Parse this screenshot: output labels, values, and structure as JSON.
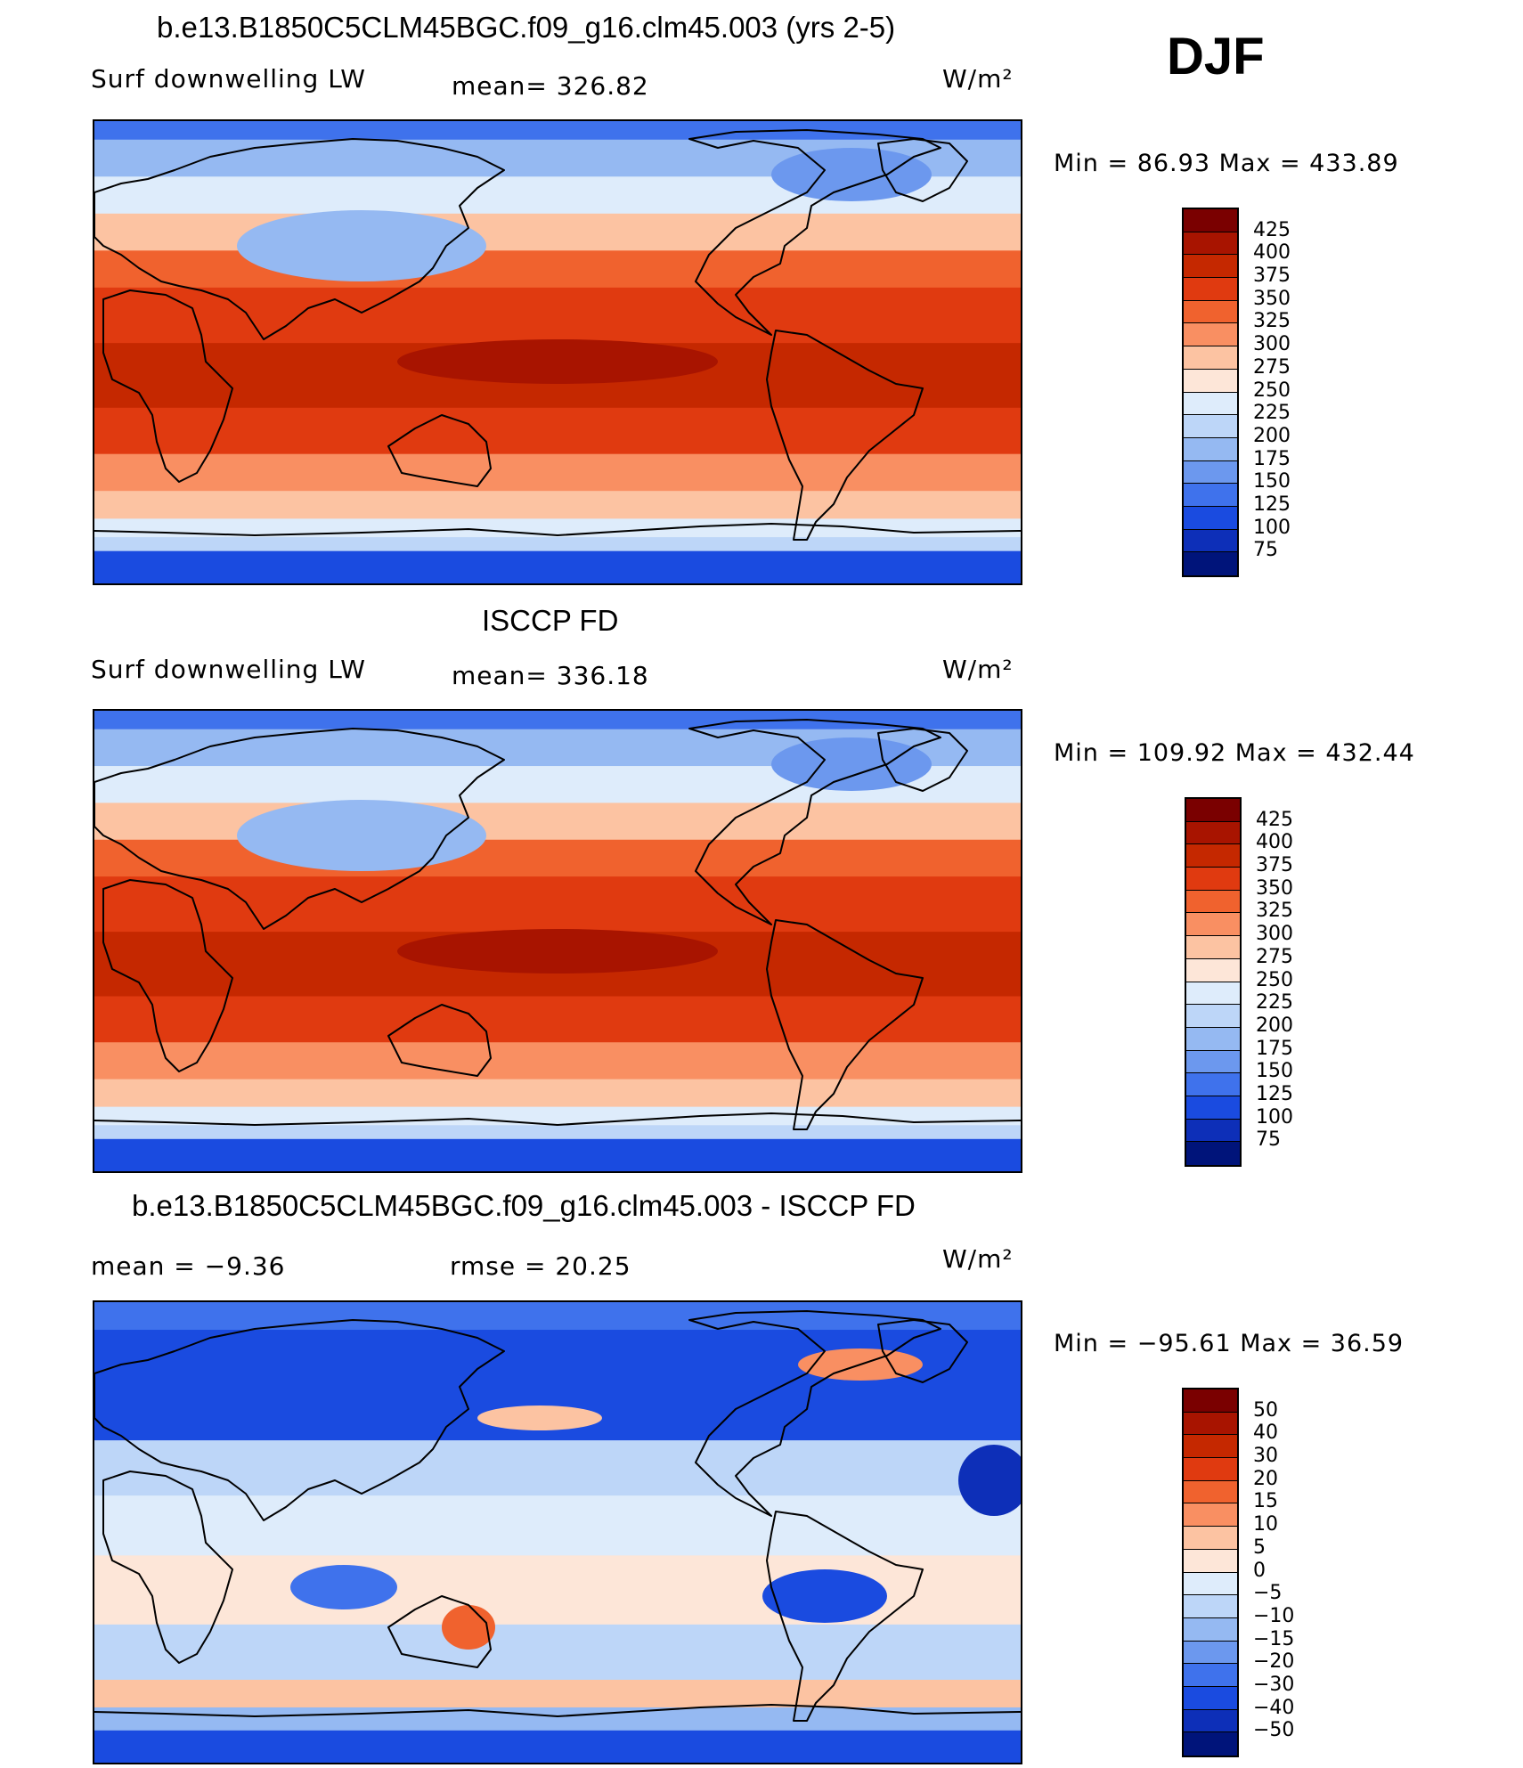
{
  "season": "DJF",
  "panels": [
    {
      "title": "b.e13.B1850C5CLM45BGC.f09_g16.clm45.003 (yrs 2-5)",
      "left_label": "Surf downwelling LW",
      "center_label": "mean= 326.82",
      "units": "W/m²",
      "minmax": "Min =   86.93 Max = 433.89",
      "colorbar_labels": [
        "425",
        "400",
        "375",
        "350",
        "325",
        "300",
        "275",
        "250",
        "225",
        "200",
        "175",
        "150",
        "125",
        "100",
        "75"
      ],
      "map_icon": "world-map-surf-downwelling-lw-model"
    },
    {
      "title": "ISCCP FD",
      "left_label": "Surf downwelling LW",
      "center_label": "mean= 336.18",
      "units": "W/m²",
      "minmax": "Min = 109.92 Max = 432.44",
      "colorbar_labels": [
        "425",
        "400",
        "375",
        "350",
        "325",
        "300",
        "275",
        "250",
        "225",
        "200",
        "175",
        "150",
        "125",
        "100",
        "75"
      ],
      "map_icon": "world-map-surf-downwelling-lw-obs"
    },
    {
      "title": "b.e13.B1850C5CLM45BGC.f09_g16.clm45.003 - ISCCP FD",
      "left_label": "mean =   −9.36",
      "center_label": "rmse =   20.25",
      "units": "W/m²",
      "minmax": "Min = −95.61 Max =   36.59",
      "colorbar_labels": [
        "50",
        "40",
        "30",
        "20",
        "15",
        "10",
        "5",
        "0",
        "−5",
        "−10",
        "−15",
        "−20",
        "−30",
        "−40",
        "−50"
      ],
      "map_icon": "world-map-difference"
    }
  ],
  "colors": {
    "abs_scale": [
      "#7a0000",
      "#a81400",
      "#c52800",
      "#e03a10",
      "#f0622e",
      "#f98f62",
      "#fcc3a2",
      "#fde6d8",
      "#deecfb",
      "#bdd6f8",
      "#95b9f2",
      "#6c98ee",
      "#3f72ec",
      "#1a4be0",
      "#0d2fb8",
      "#00147a"
    ],
    "diff_scale": [
      "#7a0000",
      "#a81400",
      "#c52800",
      "#e03a10",
      "#f0622e",
      "#f98f62",
      "#fcc3a2",
      "#fde6d8",
      "#deecfb",
      "#bdd6f8",
      "#95b9f2",
      "#6c98ee",
      "#3f72ec",
      "#1a4be0",
      "#0d2fb8",
      "#00147a"
    ]
  }
}
